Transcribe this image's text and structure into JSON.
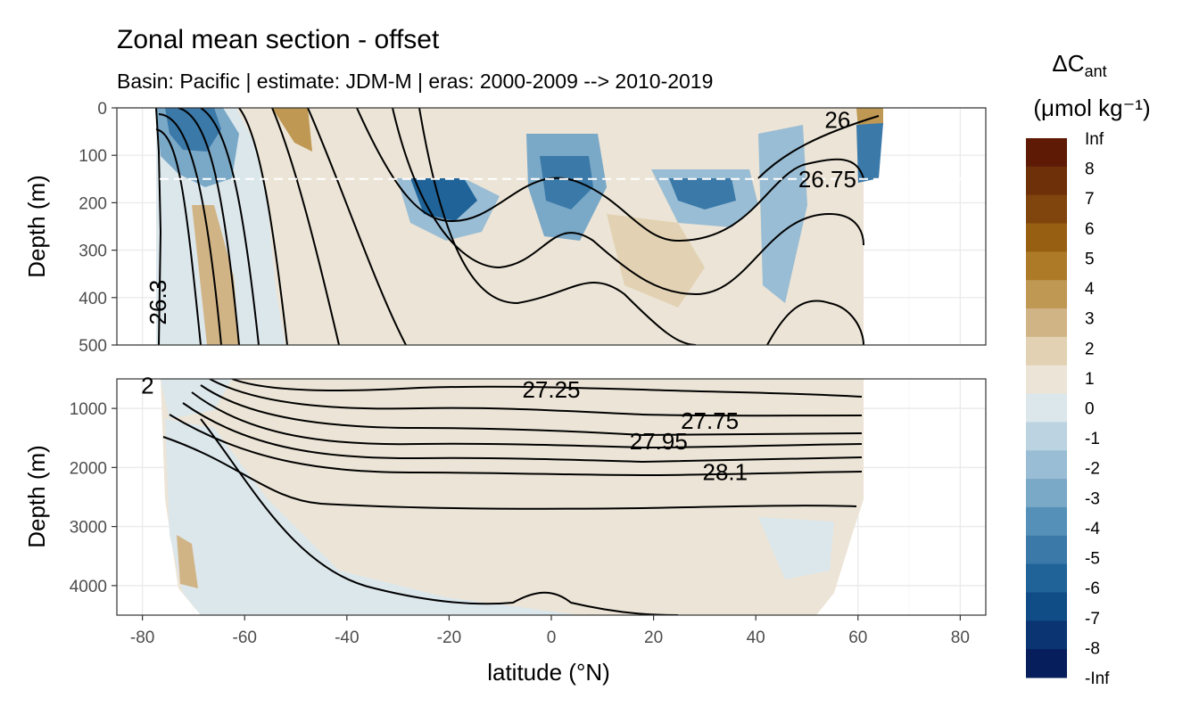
{
  "chart_data": {
    "type": "heatmap",
    "title": "Zonal mean section - offset",
    "subtitle": "Basin: Pacific | estimate: JDM-M | eras: 2000-2009 --> 2010-2019",
    "xlabel": "latitude (°N)",
    "ylabel_top": "Depth (m)",
    "ylabel_bottom": "Depth (m)",
    "xlim": [
      -85,
      85
    ],
    "x_ticks": [
      -80,
      -60,
      -40,
      -20,
      0,
      20,
      40,
      60,
      80
    ],
    "x_tick_labels": [
      "-80",
      "-60",
      "-40",
      "-20",
      "0",
      "20",
      "40",
      "60",
      "80"
    ],
    "top_panel": {
      "ylim": [
        0,
        500
      ],
      "y_ticks": [
        0,
        100,
        200,
        300,
        400,
        500
      ],
      "y_tick_labels": [
        "0",
        "100",
        "200",
        "300",
        "400",
        "500"
      ],
      "reference_depth": 150,
      "contour_labels": [
        {
          "text": "26",
          "x": 56,
          "y": 25
        },
        {
          "text": "26.75",
          "x": 54,
          "y": 150
        },
        {
          "text": "26.3",
          "x": -77,
          "y": 410
        }
      ]
    },
    "bottom_panel": {
      "ylim": [
        4500,
        500
      ],
      "y_ticks": [
        1000,
        2000,
        3000,
        4000
      ],
      "y_tick_labels": [
        "1000",
        "2000",
        "3000",
        "4000"
      ],
      "contour_labels": [
        {
          "text": "27.25",
          "x": 0,
          "y": 680
        },
        {
          "text": "27.75",
          "x": 31,
          "y": 1210
        },
        {
          "text": "27.95",
          "x": 21,
          "y": 1560
        },
        {
          "text": "28.1",
          "x": 34,
          "y": 2080
        },
        {
          "text": "2",
          "x": -79,
          "y": 610
        }
      ]
    },
    "legend": {
      "title_line1": "ΔC",
      "title_subscript": "ant",
      "title_line2": "(μmol kg⁻¹)",
      "levels": [
        "Inf",
        "8",
        "7",
        "6",
        "5",
        "4",
        "3",
        "2",
        "1",
        "0",
        "-1",
        "-2",
        "-3",
        "-4",
        "-5",
        "-6",
        "-7",
        "-8",
        "-Inf"
      ],
      "colors": [
        "#5e1a05",
        "#6e3008",
        "#80450c",
        "#975f12",
        "#ad7b28",
        "#bf9853",
        "#d1b486",
        "#e2d2b3",
        "#ece4d6",
        "#dce7ec",
        "#bcd3e2",
        "#99bdd4",
        "#7aa8c7",
        "#5590b8",
        "#3a79a8",
        "#1f6398",
        "#104c86",
        "#0a3572",
        "#061f5c"
      ]
    }
  }
}
